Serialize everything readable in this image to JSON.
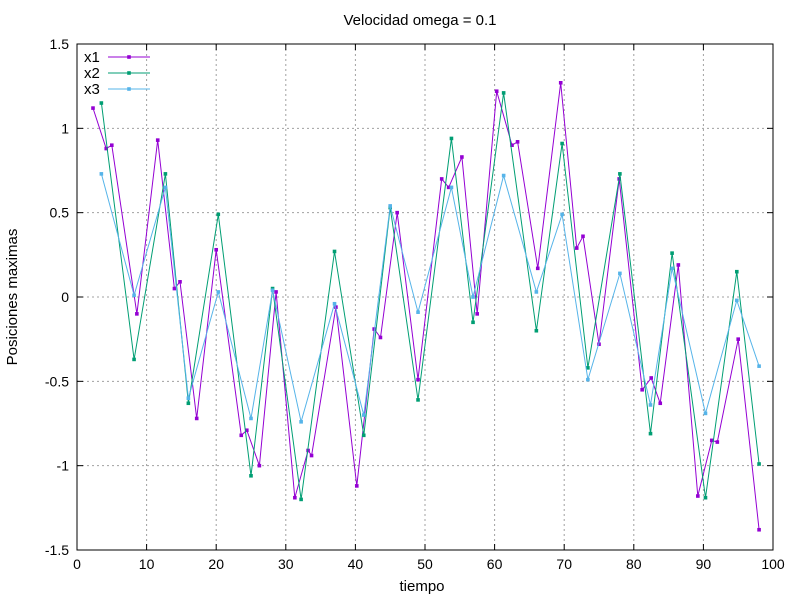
{
  "chart_data": {
    "type": "line",
    "title": "Velocidad omega = 0.1",
    "xlabel": "tiempo",
    "ylabel": "Posiciones maximas",
    "xlim": [
      0,
      100
    ],
    "ylim": [
      -1.5,
      1.5
    ],
    "xticks": [
      0,
      10,
      20,
      30,
      40,
      50,
      60,
      70,
      80,
      90,
      100
    ],
    "yticks": [
      -1.5,
      -1,
      -0.5,
      0,
      0.5,
      1,
      1.5
    ],
    "xtick_labels": [
      "0",
      "10",
      "20",
      "30",
      "40",
      "50",
      "60",
      "70",
      "80",
      "90",
      "100"
    ],
    "ytick_labels": [
      "-1.5",
      "-1",
      "-0.5",
      "0",
      "0.5",
      "1",
      "1.5"
    ],
    "grid": true,
    "legend_position": "top-left",
    "series": [
      {
        "name": "x1",
        "color": "#9400d3",
        "points": [
          [
            2.3,
            1.12
          ],
          [
            4.2,
            0.88
          ],
          [
            5.0,
            0.9
          ],
          [
            8.6,
            -0.1
          ],
          [
            11.6,
            0.93
          ],
          [
            14.0,
            0.05
          ],
          [
            14.8,
            0.09
          ],
          [
            17.2,
            -0.72
          ],
          [
            20.0,
            0.28
          ],
          [
            23.6,
            -0.82
          ],
          [
            24.4,
            -0.79
          ],
          [
            26.2,
            -1.0
          ],
          [
            28.6,
            0.03
          ],
          [
            31.3,
            -1.19
          ],
          [
            33.2,
            -0.91
          ],
          [
            33.7,
            -0.94
          ],
          [
            37.2,
            -0.06
          ],
          [
            40.2,
            -1.12
          ],
          [
            42.7,
            -0.19
          ],
          [
            43.6,
            -0.24
          ],
          [
            46.0,
            0.5
          ],
          [
            49.0,
            -0.49
          ],
          [
            52.4,
            0.7
          ],
          [
            53.4,
            0.65
          ],
          [
            55.3,
            0.83
          ],
          [
            57.5,
            -0.1
          ],
          [
            60.3,
            1.22
          ],
          [
            62.5,
            0.9
          ],
          [
            63.3,
            0.92
          ],
          [
            66.2,
            0.17
          ],
          [
            69.5,
            1.27
          ],
          [
            71.8,
            0.29
          ],
          [
            72.7,
            0.36
          ],
          [
            75.0,
            -0.28
          ],
          [
            77.9,
            0.7
          ],
          [
            81.2,
            -0.55
          ],
          [
            82.5,
            -0.48
          ],
          [
            83.8,
            -0.63
          ],
          [
            86.4,
            0.19
          ],
          [
            89.2,
            -1.18
          ],
          [
            91.2,
            -0.85
          ],
          [
            92.0,
            -0.86
          ],
          [
            95.0,
            -0.25
          ],
          [
            98.0,
            -1.38
          ]
        ]
      },
      {
        "name": "x2",
        "color": "#009e73",
        "points": [
          [
            3.5,
            1.15
          ],
          [
            8.2,
            -0.37
          ],
          [
            12.7,
            0.73
          ],
          [
            16.0,
            -0.63
          ],
          [
            20.3,
            0.49
          ],
          [
            25.0,
            -1.06
          ],
          [
            28.1,
            0.05
          ],
          [
            32.2,
            -1.2
          ],
          [
            37.0,
            0.27
          ],
          [
            41.2,
            -0.82
          ],
          [
            45.0,
            0.53
          ],
          [
            49.0,
            -0.61
          ],
          [
            53.8,
            0.94
          ],
          [
            56.9,
            -0.15
          ],
          [
            61.3,
            1.21
          ],
          [
            66.0,
            -0.2
          ],
          [
            69.7,
            0.91
          ],
          [
            73.4,
            -0.42
          ],
          [
            78.0,
            0.73
          ],
          [
            82.4,
            -0.81
          ],
          [
            85.5,
            0.26
          ],
          [
            90.3,
            -1.19
          ],
          [
            94.8,
            0.15
          ],
          [
            98.0,
            -0.99
          ]
        ]
      },
      {
        "name": "x3",
        "color": "#56b4e9",
        "points": [
          [
            3.5,
            0.73
          ],
          [
            8.2,
            0.01
          ],
          [
            12.7,
            0.65
          ],
          [
            16.0,
            -0.6
          ],
          [
            20.3,
            0.03
          ],
          [
            25.0,
            -0.72
          ],
          [
            28.1,
            0.04
          ],
          [
            32.2,
            -0.74
          ],
          [
            37.0,
            -0.04
          ],
          [
            41.2,
            -0.7
          ],
          [
            45.0,
            0.54
          ],
          [
            49.0,
            -0.09
          ],
          [
            53.8,
            0.65
          ],
          [
            56.9,
            0.0
          ],
          [
            61.3,
            0.72
          ],
          [
            66.0,
            0.03
          ],
          [
            69.7,
            0.49
          ],
          [
            73.4,
            -0.49
          ],
          [
            78.0,
            0.14
          ],
          [
            82.4,
            -0.64
          ],
          [
            85.5,
            0.17
          ],
          [
            90.3,
            -0.69
          ],
          [
            94.8,
            -0.02
          ],
          [
            98.0,
            -0.41
          ]
        ]
      }
    ]
  }
}
